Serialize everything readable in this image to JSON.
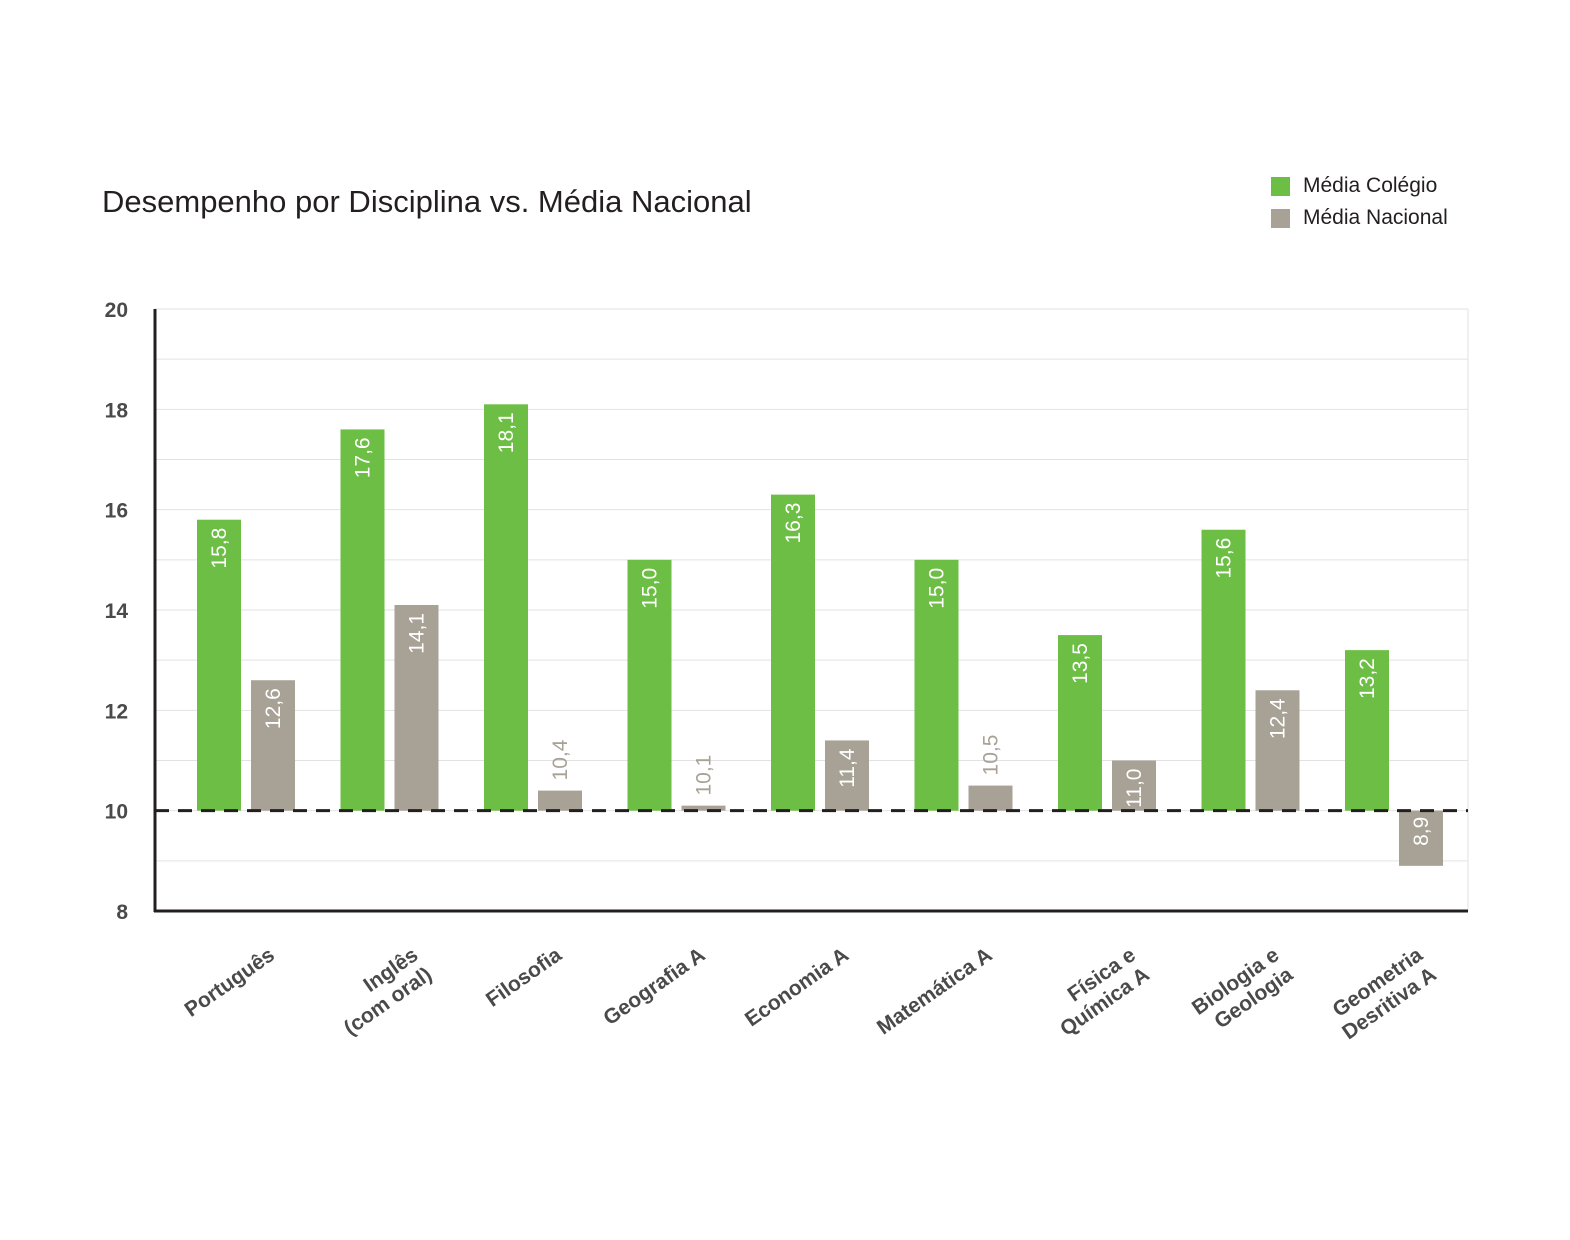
{
  "chart_data": {
    "type": "bar",
    "title": "Desempenho por Disciplina vs. Média Nacional",
    "xlabel": "",
    "ylabel": "",
    "ylim": [
      8,
      20
    ],
    "yticks": [
      8,
      10,
      12,
      14,
      16,
      18,
      20
    ],
    "baseline": 10,
    "grid": true,
    "legend_position": "top-right",
    "categories": [
      [
        "Português"
      ],
      [
        "Inglês",
        "(com oral)"
      ],
      [
        "Filosofia"
      ],
      [
        "Geografia A"
      ],
      [
        "Economia A"
      ],
      [
        "Matemática A"
      ],
      [
        "Física e",
        "Química A"
      ],
      [
        "Biologia e",
        "Geologia"
      ],
      [
        "Geometria",
        "Desritiva A"
      ]
    ],
    "series": [
      {
        "name": "Média Colégio",
        "color": "#6dbe45",
        "values": [
          15.8,
          17.6,
          18.1,
          15.0,
          16.3,
          15.0,
          13.5,
          15.6,
          13.2
        ],
        "labels": [
          "15,8",
          "17,6",
          "18,1",
          "15,0",
          "16,3",
          "15,0",
          "13,5",
          "15,6",
          "13,2"
        ]
      },
      {
        "name": "Média Nacional",
        "color": "#a8a196",
        "values": [
          12.6,
          14.1,
          10.4,
          10.1,
          11.4,
          10.5,
          11.0,
          12.4,
          8.9
        ],
        "labels": [
          "12,6",
          "14,1",
          "10,4",
          "10,1",
          "11,4",
          "10,5",
          "11,0",
          "12,4",
          "8,9"
        ]
      }
    ]
  }
}
